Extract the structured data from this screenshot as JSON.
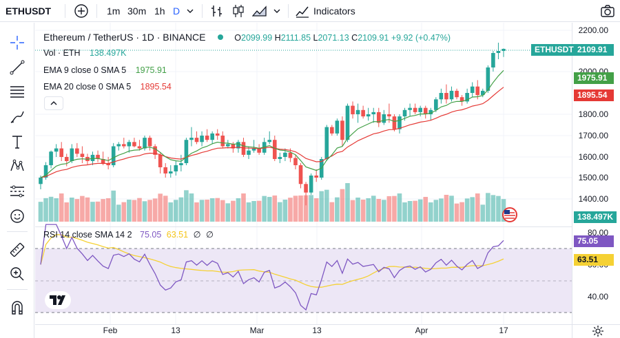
{
  "toolbar": {
    "symbol": "ETHUSDT",
    "intervals": [
      "1m",
      "30m",
      "1h",
      "D"
    ],
    "indicators_label": "Indicators"
  },
  "legend": {
    "title": "Ethereum / TetherUS · 1D · BINANCE",
    "ohlc": {
      "o_label": "O",
      "o": "2099.99",
      "h_label": "H",
      "h": "2111.85",
      "l_label": "L",
      "l": "2071.13",
      "c_label": "C",
      "c": "2109.91",
      "change": "+9.92 (+0.47%)"
    },
    "vol_label": "Vol · ETH",
    "vol_value": "138.497K",
    "ema9_label": "EMA 9 close 0 SMA 5",
    "ema9_value": "1975.91",
    "ema20_label": "EMA 20 close 0 SMA 5",
    "ema20_value": "1895.54",
    "rsi_label": "RSI 14 close SMA 14 2",
    "rsi_value": "75.05",
    "rsi_sma_value": "63.51",
    "rsi_extra1": "∅",
    "rsi_extra2": "∅"
  },
  "price_axis": {
    "ticks": [
      "2200.00",
      "2000.00",
      "1800.00",
      "1700.00",
      "1600.00",
      "1500.00",
      "1400.00"
    ],
    "last_symbol": "ETHUSDT",
    "last_price": "2109.91",
    "ema9_tag": "1975.91",
    "ema20_tag": "1895.54",
    "vol_tag": "138.497K"
  },
  "rsi_axis": {
    "ticks": [
      "80.00",
      "60.00",
      "40.00"
    ],
    "rsi_tag": "75.05",
    "sma_tag": "63.51"
  },
  "time_axis": [
    "Feb",
    "13",
    "Mar",
    "13",
    "Apr",
    "17"
  ],
  "colors": {
    "up": "#26a69a",
    "down": "#ef5350",
    "ema9": "#43a047",
    "ema20": "#e53935",
    "rsi": "#7e57c2",
    "rsi_sma": "#f5d134",
    "rsi_band": "#ede7f6"
  },
  "icons": [
    "plus-circle-icon",
    "bar-style-icon",
    "candles-icon",
    "area-icon",
    "indicators-icon",
    "camera-icon",
    "crosshair-icon",
    "trend-line-icon",
    "fib-icon",
    "brush-icon",
    "text-icon",
    "pattern-icon",
    "forecast-icon",
    "emoji-icon",
    "ruler-icon",
    "zoom-icon",
    "magnet-icon",
    "gear-icon",
    "tv-logo",
    "flag-icon"
  ],
  "chart_data": {
    "type": "candlestick",
    "title": "Ethereum / TetherUS · 1D · BINANCE",
    "ylim": [
      1330,
      2220
    ],
    "xtick_labels": [
      "Feb",
      "13",
      "Mar",
      "13",
      "Apr",
      "17"
    ],
    "candles": [
      [
        1470,
        1510,
        1445,
        1500
      ],
      [
        1500,
        1575,
        1490,
        1560
      ],
      [
        1560,
        1630,
        1545,
        1625
      ],
      [
        1625,
        1660,
        1600,
        1640
      ],
      [
        1640,
        1670,
        1580,
        1600
      ],
      [
        1600,
        1615,
        1555,
        1580
      ],
      [
        1580,
        1660,
        1570,
        1640
      ],
      [
        1640,
        1665,
        1600,
        1615
      ],
      [
        1615,
        1650,
        1570,
        1600
      ],
      [
        1600,
        1615,
        1560,
        1580
      ],
      [
        1580,
        1625,
        1560,
        1610
      ],
      [
        1610,
        1630,
        1575,
        1590
      ],
      [
        1590,
        1625,
        1560,
        1570
      ],
      [
        1570,
        1600,
        1540,
        1560
      ],
      [
        1560,
        1665,
        1550,
        1650
      ],
      [
        1650,
        1670,
        1630,
        1660
      ],
      [
        1660,
        1690,
        1640,
        1650
      ],
      [
        1650,
        1680,
        1620,
        1670
      ],
      [
        1670,
        1690,
        1645,
        1650
      ],
      [
        1650,
        1680,
        1630,
        1640
      ],
      [
        1640,
        1700,
        1630,
        1690
      ],
      [
        1690,
        1700,
        1630,
        1650
      ],
      [
        1650,
        1660,
        1590,
        1610
      ],
      [
        1610,
        1620,
        1520,
        1550
      ],
      [
        1550,
        1570,
        1500,
        1520
      ],
      [
        1520,
        1560,
        1500,
        1530
      ],
      [
        1530,
        1580,
        1510,
        1560
      ],
      [
        1560,
        1610,
        1530,
        1570
      ],
      [
        1570,
        1690,
        1560,
        1680
      ],
      [
        1680,
        1740,
        1650,
        1690
      ],
      [
        1690,
        1720,
        1660,
        1670
      ],
      [
        1670,
        1720,
        1650,
        1700
      ],
      [
        1700,
        1730,
        1670,
        1680
      ],
      [
        1680,
        1720,
        1660,
        1710
      ],
      [
        1710,
        1730,
        1680,
        1700
      ],
      [
        1700,
        1720,
        1640,
        1650
      ],
      [
        1650,
        1680,
        1640,
        1660
      ],
      [
        1660,
        1670,
        1620,
        1640
      ],
      [
        1640,
        1680,
        1620,
        1670
      ],
      [
        1670,
        1690,
        1600,
        1610
      ],
      [
        1610,
        1650,
        1590,
        1630
      ],
      [
        1630,
        1680,
        1620,
        1640
      ],
      [
        1640,
        1660,
        1610,
        1620
      ],
      [
        1620,
        1690,
        1610,
        1670
      ],
      [
        1670,
        1720,
        1660,
        1680
      ],
      [
        1680,
        1700,
        1580,
        1590
      ],
      [
        1590,
        1620,
        1570,
        1600
      ],
      [
        1600,
        1640,
        1580,
        1620
      ],
      [
        1620,
        1640,
        1575,
        1595
      ],
      [
        1595,
        1610,
        1540,
        1560
      ],
      [
        1560,
        1570,
        1450,
        1470
      ],
      [
        1470,
        1480,
        1370,
        1430
      ],
      [
        1430,
        1520,
        1420,
        1510
      ],
      [
        1510,
        1540,
        1480,
        1500
      ],
      [
        1500,
        1600,
        1490,
        1590
      ],
      [
        1590,
        1750,
        1580,
        1740
      ],
      [
        1740,
        1750,
        1700,
        1710
      ],
      [
        1710,
        1780,
        1700,
        1770
      ],
      [
        1770,
        1790,
        1650,
        1680
      ],
      [
        1680,
        1850,
        1670,
        1840
      ],
      [
        1840,
        1860,
        1780,
        1800
      ],
      [
        1800,
        1850,
        1760,
        1820
      ],
      [
        1820,
        1840,
        1780,
        1790
      ],
      [
        1790,
        1830,
        1770,
        1800
      ],
      [
        1800,
        1830,
        1760,
        1810
      ],
      [
        1810,
        1830,
        1740,
        1760
      ],
      [
        1760,
        1820,
        1750,
        1800
      ],
      [
        1800,
        1850,
        1760,
        1790
      ],
      [
        1790,
        1800,
        1720,
        1730
      ],
      [
        1730,
        1800,
        1710,
        1790
      ],
      [
        1790,
        1830,
        1770,
        1820
      ],
      [
        1820,
        1850,
        1790,
        1830
      ],
      [
        1830,
        1850,
        1800,
        1810
      ],
      [
        1810,
        1840,
        1790,
        1830
      ],
      [
        1830,
        1840,
        1780,
        1800
      ],
      [
        1800,
        1830,
        1770,
        1820
      ],
      [
        1820,
        1880,
        1810,
        1870
      ],
      [
        1870,
        1920,
        1850,
        1900
      ],
      [
        1900,
        1940,
        1850,
        1870
      ],
      [
        1870,
        1930,
        1860,
        1910
      ],
      [
        1910,
        1920,
        1870,
        1880
      ],
      [
        1880,
        1890,
        1840,
        1860
      ],
      [
        1860,
        1920,
        1850,
        1900
      ],
      [
        1900,
        1950,
        1880,
        1930
      ],
      [
        1930,
        1960,
        1870,
        1890
      ],
      [
        1890,
        1920,
        1880,
        1910
      ],
      [
        1910,
        2030,
        1900,
        2020
      ],
      [
        2020,
        2100,
        2000,
        2090
      ],
      [
        2090,
        2140,
        2060,
        2100
      ],
      [
        2100,
        2112,
        2071,
        2110
      ]
    ],
    "ema9_tag": 1975.91,
    "ema20_tag": 1895.54,
    "volume_last": "138.497K",
    "rsi_last": 75.05,
    "rsi_sma_last": 63.51,
    "rsi_levels": [
      70,
      50,
      30
    ],
    "rsi_ticks": [
      80,
      60,
      40
    ]
  }
}
